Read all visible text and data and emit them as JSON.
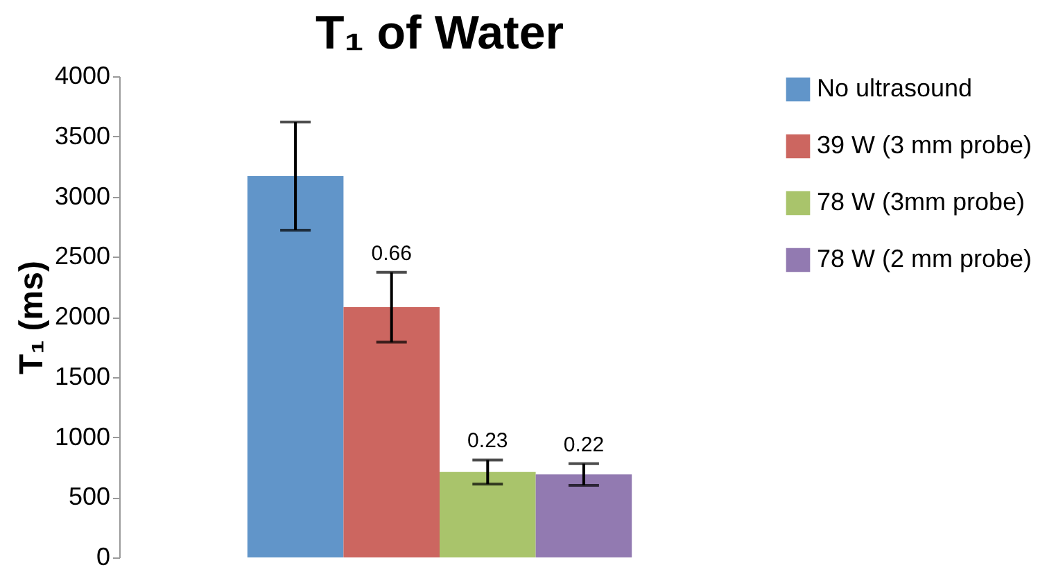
{
  "chart_data": {
    "type": "bar",
    "title": "T₁ of Water",
    "ylabel": "T₁ (ms)",
    "categories": [
      null
    ],
    "series": [
      {
        "name": "No ultrasound",
        "color": "#6195c9",
        "values": [
          3170
        ],
        "errors": [
          450
        ]
      },
      {
        "name": "39 W (3 mm probe)",
        "color": "#cc6660",
        "values": [
          2080
        ],
        "errors": [
          290
        ]
      },
      {
        "name": "78 W (3mm probe)",
        "color": "#a9c46b",
        "values": [
          710
        ],
        "errors": [
          100
        ]
      },
      {
        "name": "78 W (2 mm probe)",
        "color": "#927ab1",
        "values": [
          690
        ],
        "errors": [
          90
        ]
      }
    ],
    "annotations": [
      {
        "text": "0.66",
        "y": 2370
      },
      {
        "text": "0.23",
        "y": 810
      },
      {
        "text": "0.22",
        "y": 780
      }
    ],
    "ylim": [
      0,
      4000
    ],
    "yticks": [
      0,
      500,
      1000,
      1500,
      2000,
      2500,
      3000,
      3500,
      4000
    ],
    "grid": false,
    "legend": "right"
  }
}
